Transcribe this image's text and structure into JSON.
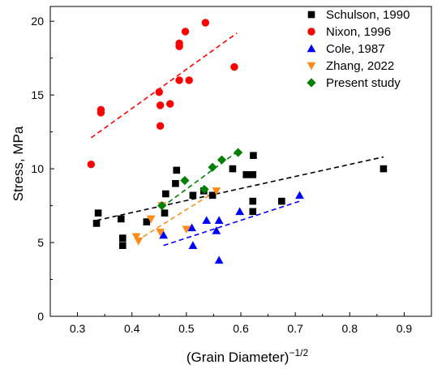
{
  "chart_data": {
    "type": "scatter",
    "xlabel_base": "(Grain Diameter)",
    "xlabel_sup": "−1/2",
    "ylabel": "Stress, MPa",
    "xlim": [
      0.25,
      0.95
    ],
    "ylim": [
      0,
      21
    ],
    "xticks": [
      "0.3",
      "0.4",
      "0.5",
      "0.6",
      "0.7",
      "0.8",
      "0.9"
    ],
    "yticks": [
      "0",
      "5",
      "10",
      "15",
      "20"
    ],
    "legend_position": "top-right",
    "grid": false,
    "series": [
      {
        "name": "Schulson, 1990",
        "marker": "square",
        "color": "#000000",
        "points": [
          [
            0.335,
            6.3
          ],
          [
            0.338,
            7.0
          ],
          [
            0.38,
            6.6
          ],
          [
            0.383,
            5.3
          ],
          [
            0.383,
            4.8
          ],
          [
            0.427,
            6.4
          ],
          [
            0.46,
            7.0
          ],
          [
            0.462,
            8.3
          ],
          [
            0.48,
            9.0
          ],
          [
            0.482,
            9.9
          ],
          [
            0.512,
            8.2
          ],
          [
            0.532,
            8.5
          ],
          [
            0.548,
            8.2
          ],
          [
            0.585,
            10.0
          ],
          [
            0.61,
            9.6
          ],
          [
            0.622,
            9.6
          ],
          [
            0.623,
            10.9
          ],
          [
            0.622,
            7.8
          ],
          [
            0.622,
            7.1
          ],
          [
            0.675,
            7.8
          ],
          [
            0.862,
            10.0
          ]
        ],
        "trend": [
          [
            0.335,
            6.5
          ],
          [
            0.862,
            10.8
          ]
        ]
      },
      {
        "name": "Nixon, 1996",
        "marker": "circle",
        "color": "#ff0000",
        "points": [
          [
            0.325,
            10.3
          ],
          [
            0.343,
            14.0
          ],
          [
            0.343,
            13.8
          ],
          [
            0.45,
            15.2
          ],
          [
            0.452,
            14.3
          ],
          [
            0.452,
            12.9
          ],
          [
            0.47,
            14.4
          ],
          [
            0.487,
            18.3
          ],
          [
            0.487,
            18.5
          ],
          [
            0.487,
            16.0
          ],
          [
            0.498,
            19.3
          ],
          [
            0.505,
            16.0
          ],
          [
            0.535,
            19.9
          ],
          [
            0.588,
            16.9
          ]
        ],
        "trend": [
          [
            0.325,
            12.1
          ],
          [
            0.593,
            19.2
          ]
        ]
      },
      {
        "name": "Cole, 1987",
        "marker": "triangle-up",
        "color": "#0000ff",
        "points": [
          [
            0.458,
            5.5
          ],
          [
            0.51,
            6.0
          ],
          [
            0.512,
            4.8
          ],
          [
            0.537,
            6.5
          ],
          [
            0.555,
            5.8
          ],
          [
            0.56,
            6.5
          ],
          [
            0.56,
            3.8
          ],
          [
            0.598,
            7.1
          ],
          [
            0.708,
            8.2
          ]
        ],
        "trend": [
          [
            0.458,
            4.8
          ],
          [
            0.708,
            7.8
          ]
        ]
      },
      {
        "name": "Zhang, 2022",
        "marker": "triangle-down",
        "color": "#ff8c1a",
        "points": [
          [
            0.408,
            5.4
          ],
          [
            0.412,
            5.1
          ],
          [
            0.435,
            6.6
          ],
          [
            0.452,
            5.7
          ],
          [
            0.455,
            7.5
          ],
          [
            0.5,
            5.9
          ],
          [
            0.555,
            8.5
          ]
        ],
        "trend": [
          [
            0.408,
            5.1
          ],
          [
            0.555,
            8.5
          ]
        ]
      },
      {
        "name": "Present study",
        "marker": "diamond",
        "color": "#008000",
        "points": [
          [
            0.455,
            7.5
          ],
          [
            0.497,
            9.2
          ],
          [
            0.533,
            8.6
          ],
          [
            0.548,
            10.1
          ],
          [
            0.565,
            10.6
          ],
          [
            0.595,
            11.1
          ]
        ],
        "trend": [
          [
            0.455,
            7.4
          ],
          [
            0.595,
            11.2
          ]
        ]
      }
    ]
  }
}
